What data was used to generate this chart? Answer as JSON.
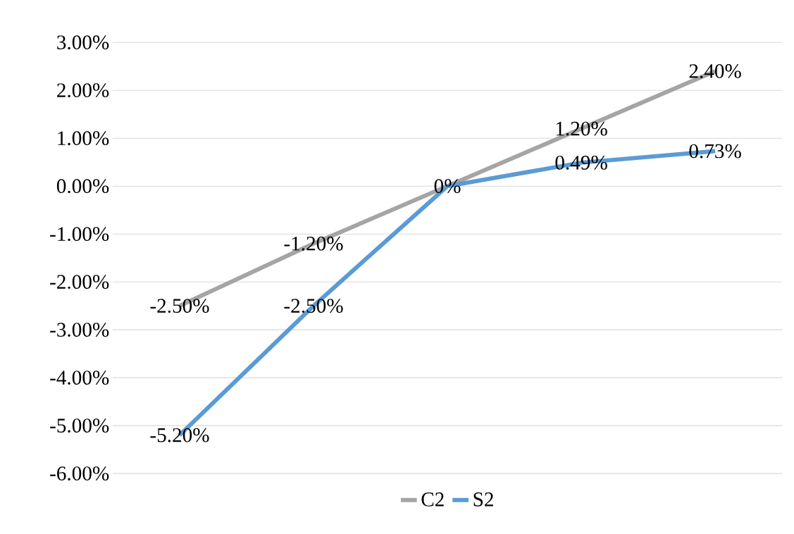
{
  "chart_data": {
    "type": "line",
    "categories": [
      null,
      null,
      null,
      null,
      null
    ],
    "series": [
      {
        "name": "C2",
        "color": "#a5a5a5",
        "values": [
          -2.5,
          -1.2,
          0,
          1.2,
          2.4
        ],
        "value_labels": [
          "-2.50%",
          "-1.20%",
          null,
          "1.20%",
          "2.40%"
        ]
      },
      {
        "name": "S2",
        "color": "#5b9bd5",
        "values": [
          -5.2,
          -2.5,
          0,
          0.49,
          0.73
        ],
        "value_labels": [
          "-5.20%",
          "-2.50%",
          "0%",
          "0.49%",
          "0.73%"
        ]
      }
    ],
    "ylim": [
      -6,
      3
    ],
    "yticks": [
      {
        "value": -6,
        "label": "-6.00%"
      },
      {
        "value": -5,
        "label": "-5.00%"
      },
      {
        "value": -4,
        "label": "-4.00%"
      },
      {
        "value": -3,
        "label": "-3.00%"
      },
      {
        "value": -2,
        "label": "-2.00%"
      },
      {
        "value": -1,
        "label": "-1.00%"
      },
      {
        "value": 0,
        "label": "0.00%"
      },
      {
        "value": 1,
        "label": "1.00%"
      },
      {
        "value": 2,
        "label": "2.00%"
      },
      {
        "value": 3,
        "label": "3.00%"
      }
    ],
    "grid": "y",
    "legend": "bottom"
  }
}
